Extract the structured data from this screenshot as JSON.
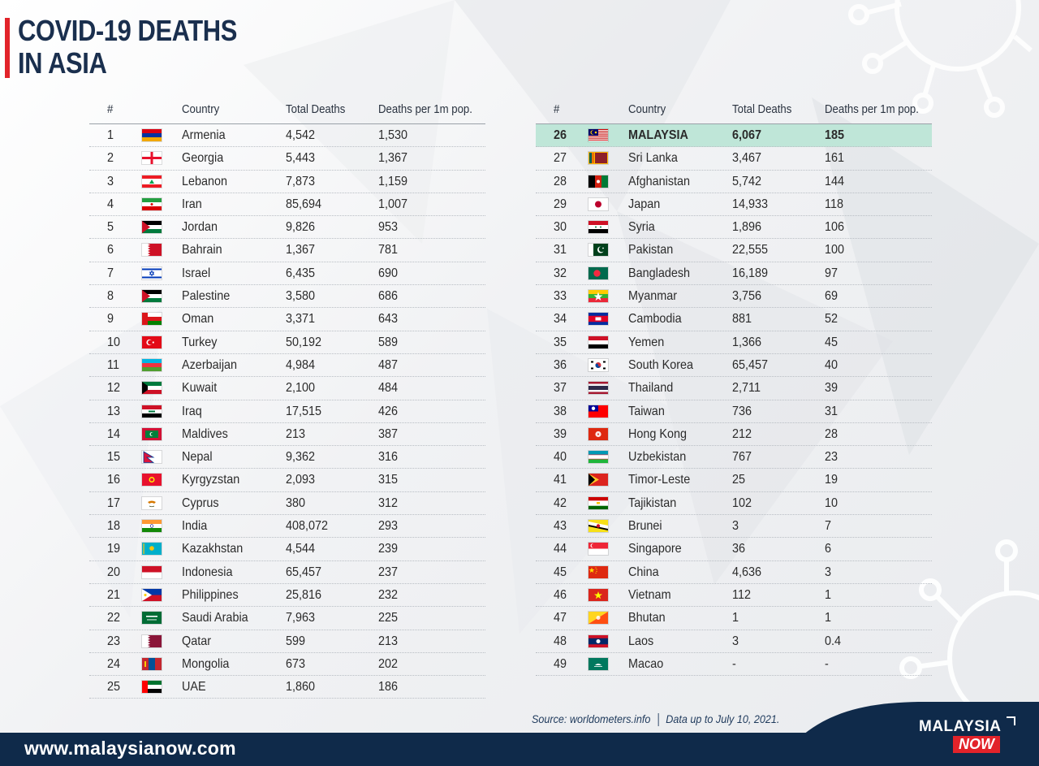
{
  "header": {
    "title_line1": "COVID-19 DEATHS",
    "title_line2": "IN ASIA"
  },
  "columns": {
    "rank": "#",
    "country": "Country",
    "total_deaths": "Total Deaths",
    "per_million": "Deaths per 1m pop."
  },
  "chart_data": {
    "type": "table",
    "title": "COVID-19 DEATHS IN ASIA",
    "columns": [
      "#",
      "Country",
      "Total Deaths",
      "Deaths per 1m pop."
    ],
    "highlight_rank": 26,
    "rows": [
      {
        "rank": "1",
        "country": "Armenia",
        "deaths": "4,542",
        "per_million": "1,530",
        "flag": "armenia-flag-icon"
      },
      {
        "rank": "2",
        "country": "Georgia",
        "deaths": "5,443",
        "per_million": "1,367",
        "flag": "georgia-flag-icon"
      },
      {
        "rank": "3",
        "country": "Lebanon",
        "deaths": "7,873",
        "per_million": "1,159",
        "flag": "lebanon-flag-icon"
      },
      {
        "rank": "4",
        "country": "Iran",
        "deaths": "85,694",
        "per_million": "1,007",
        "flag": "iran-flag-icon"
      },
      {
        "rank": "5",
        "country": "Jordan",
        "deaths": "9,826",
        "per_million": "953",
        "flag": "jordan-flag-icon"
      },
      {
        "rank": "6",
        "country": "Bahrain",
        "deaths": "1,367",
        "per_million": "781",
        "flag": "bahrain-flag-icon"
      },
      {
        "rank": "7",
        "country": "Israel",
        "deaths": "6,435",
        "per_million": "690",
        "flag": "israel-flag-icon"
      },
      {
        "rank": "8",
        "country": "Palestine",
        "deaths": "3,580",
        "per_million": "686",
        "flag": "palestine-flag-icon"
      },
      {
        "rank": "9",
        "country": "Oman",
        "deaths": "3,371",
        "per_million": "643",
        "flag": "oman-flag-icon"
      },
      {
        "rank": "10",
        "country": "Turkey",
        "deaths": "50,192",
        "per_million": "589",
        "flag": "turkey-flag-icon"
      },
      {
        "rank": "11",
        "country": "Azerbaijan",
        "deaths": "4,984",
        "per_million": "487",
        "flag": "azerbaijan-flag-icon"
      },
      {
        "rank": "12",
        "country": "Kuwait",
        "deaths": "2,100",
        "per_million": "484",
        "flag": "kuwait-flag-icon"
      },
      {
        "rank": "13",
        "country": "Iraq",
        "deaths": "17,515",
        "per_million": "426",
        "flag": "iraq-flag-icon"
      },
      {
        "rank": "14",
        "country": "Maldives",
        "deaths": "213",
        "per_million": "387",
        "flag": "maldives-flag-icon"
      },
      {
        "rank": "15",
        "country": "Nepal",
        "deaths": "9,362",
        "per_million": "316",
        "flag": "nepal-flag-icon"
      },
      {
        "rank": "16",
        "country": "Kyrgyzstan",
        "deaths": "2,093",
        "per_million": "315",
        "flag": "kyrgyzstan-flag-icon"
      },
      {
        "rank": "17",
        "country": "Cyprus",
        "deaths": "380",
        "per_million": "312",
        "flag": "cyprus-flag-icon"
      },
      {
        "rank": "18",
        "country": "India",
        "deaths": "408,072",
        "per_million": "293",
        "flag": "india-flag-icon"
      },
      {
        "rank": "19",
        "country": "Kazakhstan",
        "deaths": "4,544",
        "per_million": "239",
        "flag": "kazakhstan-flag-icon"
      },
      {
        "rank": "20",
        "country": "Indonesia",
        "deaths": "65,457",
        "per_million": "237",
        "flag": "indonesia-flag-icon"
      },
      {
        "rank": "21",
        "country": "Philippines",
        "deaths": "25,816",
        "per_million": "232",
        "flag": "philippines-flag-icon"
      },
      {
        "rank": "22",
        "country": "Saudi Arabia",
        "deaths": "7,963",
        "per_million": "225",
        "flag": "saudi-arabia-flag-icon"
      },
      {
        "rank": "23",
        "country": "Qatar",
        "deaths": "599",
        "per_million": "213",
        "flag": "qatar-flag-icon"
      },
      {
        "rank": "24",
        "country": "Mongolia",
        "deaths": "673",
        "per_million": "202",
        "flag": "mongolia-flag-icon"
      },
      {
        "rank": "25",
        "country": "UAE",
        "deaths": "1,860",
        "per_million": "186",
        "flag": "uae-flag-icon"
      },
      {
        "rank": "26",
        "country": "MALAYSIA",
        "deaths": "6,067",
        "per_million": "185",
        "flag": "malaysia-flag-icon"
      },
      {
        "rank": "27",
        "country": "Sri Lanka",
        "deaths": "3,467",
        "per_million": "161",
        "flag": "sri-lanka-flag-icon"
      },
      {
        "rank": "28",
        "country": "Afghanistan",
        "deaths": "5,742",
        "per_million": "144",
        "flag": "afghanistan-flag-icon"
      },
      {
        "rank": "29",
        "country": "Japan",
        "deaths": "14,933",
        "per_million": "118",
        "flag": "japan-flag-icon"
      },
      {
        "rank": "30",
        "country": "Syria",
        "deaths": "1,896",
        "per_million": "106",
        "flag": "syria-flag-icon"
      },
      {
        "rank": "31",
        "country": "Pakistan",
        "deaths": "22,555",
        "per_million": "100",
        "flag": "pakistan-flag-icon"
      },
      {
        "rank": "32",
        "country": "Bangladesh",
        "deaths": "16,189",
        "per_million": "97",
        "flag": "bangladesh-flag-icon"
      },
      {
        "rank": "33",
        "country": "Myanmar",
        "deaths": "3,756",
        "per_million": "69",
        "flag": "myanmar-flag-icon"
      },
      {
        "rank": "34",
        "country": "Cambodia",
        "deaths": "881",
        "per_million": "52",
        "flag": "cambodia-flag-icon"
      },
      {
        "rank": "35",
        "country": "Yemen",
        "deaths": "1,366",
        "per_million": "45",
        "flag": "yemen-flag-icon"
      },
      {
        "rank": "36",
        "country": "South Korea",
        "deaths": "65,457",
        "per_million": "40",
        "flag": "south-korea-flag-icon"
      },
      {
        "rank": "37",
        "country": "Thailand",
        "deaths": "2,711",
        "per_million": "39",
        "flag": "thailand-flag-icon"
      },
      {
        "rank": "38",
        "country": "Taiwan",
        "deaths": "736",
        "per_million": "31",
        "flag": "taiwan-flag-icon"
      },
      {
        "rank": "39",
        "country": "Hong Kong",
        "deaths": "212",
        "per_million": "28",
        "flag": "hong-kong-flag-icon"
      },
      {
        "rank": "40",
        "country": "Uzbekistan",
        "deaths": "767",
        "per_million": "23",
        "flag": "uzbekistan-flag-icon"
      },
      {
        "rank": "41",
        "country": "Timor-Leste",
        "deaths": "25",
        "per_million": "19",
        "flag": "timor-leste-flag-icon"
      },
      {
        "rank": "42",
        "country": "Tajikistan",
        "deaths": "102",
        "per_million": "10",
        "flag": "tajikistan-flag-icon"
      },
      {
        "rank": "43",
        "country": "Brunei",
        "deaths": "3",
        "per_million": "7",
        "flag": "brunei-flag-icon"
      },
      {
        "rank": "44",
        "country": "Singapore",
        "deaths": "36",
        "per_million": "6",
        "flag": "singapore-flag-icon"
      },
      {
        "rank": "45",
        "country": "China",
        "deaths": "4,636",
        "per_million": "3",
        "flag": "china-flag-icon"
      },
      {
        "rank": "46",
        "country": "Vietnam",
        "deaths": "112",
        "per_million": "1",
        "flag": "vietnam-flag-icon"
      },
      {
        "rank": "47",
        "country": "Bhutan",
        "deaths": "1",
        "per_million": "1",
        "flag": "bhutan-flag-icon"
      },
      {
        "rank": "48",
        "country": "Laos",
        "deaths": "3",
        "per_million": "0.4",
        "flag": "laos-flag-icon"
      },
      {
        "rank": "49",
        "country": "Macao",
        "deaths": "-",
        "per_million": "-",
        "flag": "macao-flag-icon"
      }
    ]
  },
  "footer": {
    "source": "Source: worldometers.info",
    "date_note": "Data up to July 10, 2021.",
    "website": "www.malaysianow.com",
    "logo_top": "MALAYSIA",
    "logo_bottom": "NOW"
  },
  "colors": {
    "title": "#1a2f4e",
    "accent_red": "#e2232a",
    "highlight_row": "#bfe6d8",
    "footer_bg": "#0f2a4a"
  }
}
